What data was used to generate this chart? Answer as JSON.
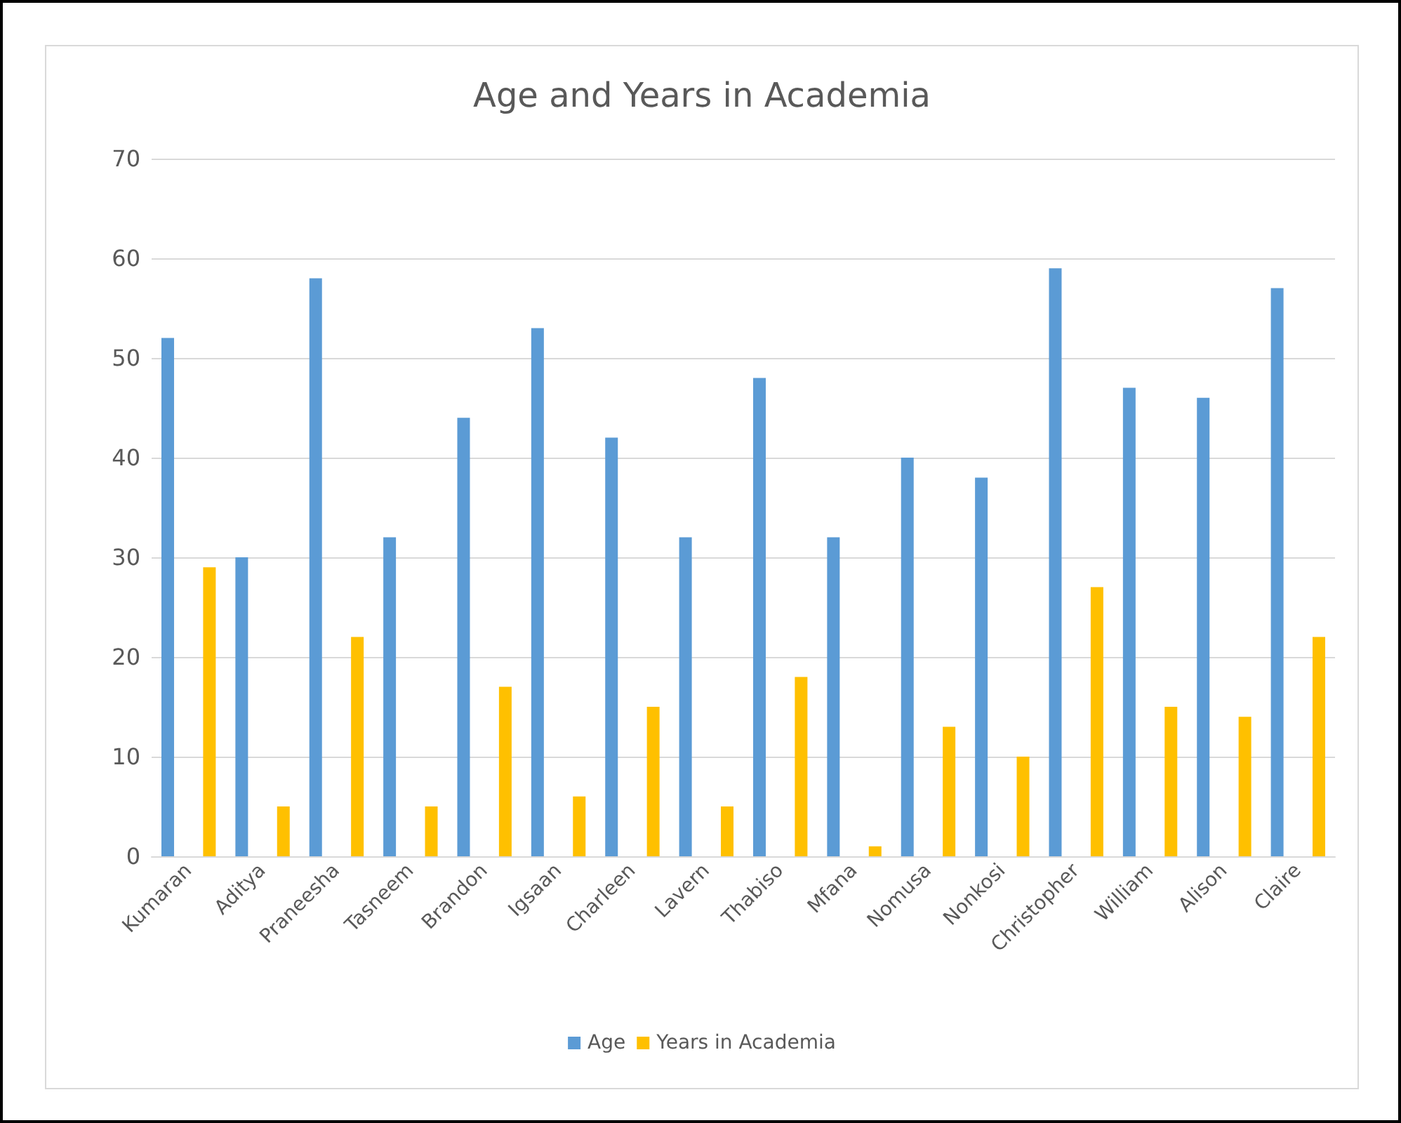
{
  "chart_data": {
    "type": "bar",
    "title": "Age and Years in Academia",
    "categories": [
      "Kumaran",
      "Aditya",
      "Praneesha",
      "Tasneem",
      "Brandon",
      "Igsaan",
      "Charleen",
      "Lavern",
      "Thabiso",
      "Mfana",
      "Nomusa",
      "Nonkosi",
      "Christopher",
      "William",
      "Alison",
      "Claire"
    ],
    "series": [
      {
        "name": "Age",
        "color": "#5b9bd5",
        "values": [
          52,
          30,
          58,
          32,
          44,
          53,
          42,
          32,
          48,
          32,
          40,
          38,
          59,
          47,
          46,
          57
        ]
      },
      {
        "name": "Years in Academia",
        "color": "#ffc000",
        "values": [
          29,
          5,
          22,
          5,
          17,
          6,
          15,
          5,
          18,
          1,
          13,
          10,
          27,
          15,
          14,
          22
        ]
      }
    ],
    "ylim": [
      0,
      70
    ],
    "yticks": [
      0,
      10,
      20,
      30,
      40,
      50,
      60,
      70
    ],
    "grid": "y",
    "legend": "bottom"
  }
}
